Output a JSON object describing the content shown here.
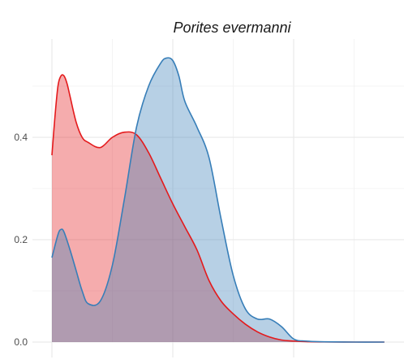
{
  "chart_data": {
    "type": "area",
    "title": "Porites evermanni",
    "xlabel": "",
    "ylabel": "",
    "xlim": [
      -0.3,
      5.5
    ],
    "ylim": [
      0,
      0.6
    ],
    "y_ticks": [
      0.0,
      0.2,
      0.4
    ],
    "y_tick_labels": [
      "0.0",
      "0.2",
      "0.4"
    ],
    "x_ticks": [
      0,
      2,
      4
    ],
    "grid": true,
    "legend": "none",
    "series": [
      {
        "color": "#e41a1c",
        "fill": "#f4a6ae",
        "x": [
          0.0,
          0.05,
          0.1,
          0.15,
          0.2,
          0.25,
          0.3,
          0.4,
          0.5,
          0.6,
          0.8,
          1.0,
          1.2,
          1.4,
          1.6,
          1.8,
          2.0,
          2.2,
          2.4,
          2.6,
          2.8,
          3.0,
          3.2,
          3.4,
          3.6,
          3.8,
          4.0,
          4.2,
          4.5,
          5.0,
          5.5
        ],
        "y": [
          0.365,
          0.44,
          0.5,
          0.52,
          0.52,
          0.505,
          0.48,
          0.43,
          0.4,
          0.39,
          0.38,
          0.4,
          0.41,
          0.405,
          0.37,
          0.32,
          0.27,
          0.225,
          0.18,
          0.12,
          0.08,
          0.055,
          0.035,
          0.02,
          0.01,
          0.004,
          0.002,
          0.0008,
          0.0002,
          0.0,
          0.0
        ]
      },
      {
        "color": "#377eb8",
        "fill": "#b3cde3",
        "x": [
          0.0,
          0.1,
          0.15,
          0.2,
          0.3,
          0.4,
          0.5,
          0.6,
          0.8,
          1.0,
          1.2,
          1.4,
          1.6,
          1.8,
          1.9,
          2.0,
          2.1,
          2.2,
          2.4,
          2.6,
          2.8,
          3.0,
          3.2,
          3.4,
          3.6,
          3.8,
          4.0,
          4.2,
          4.5,
          5.0,
          5.5
        ],
        "y": [
          0.165,
          0.21,
          0.22,
          0.215,
          0.18,
          0.14,
          0.1,
          0.075,
          0.08,
          0.15,
          0.28,
          0.42,
          0.5,
          0.545,
          0.555,
          0.55,
          0.52,
          0.47,
          0.42,
          0.36,
          0.24,
          0.13,
          0.065,
          0.045,
          0.045,
          0.03,
          0.006,
          0.002,
          0.0005,
          0.0,
          0.0
        ]
      }
    ]
  }
}
